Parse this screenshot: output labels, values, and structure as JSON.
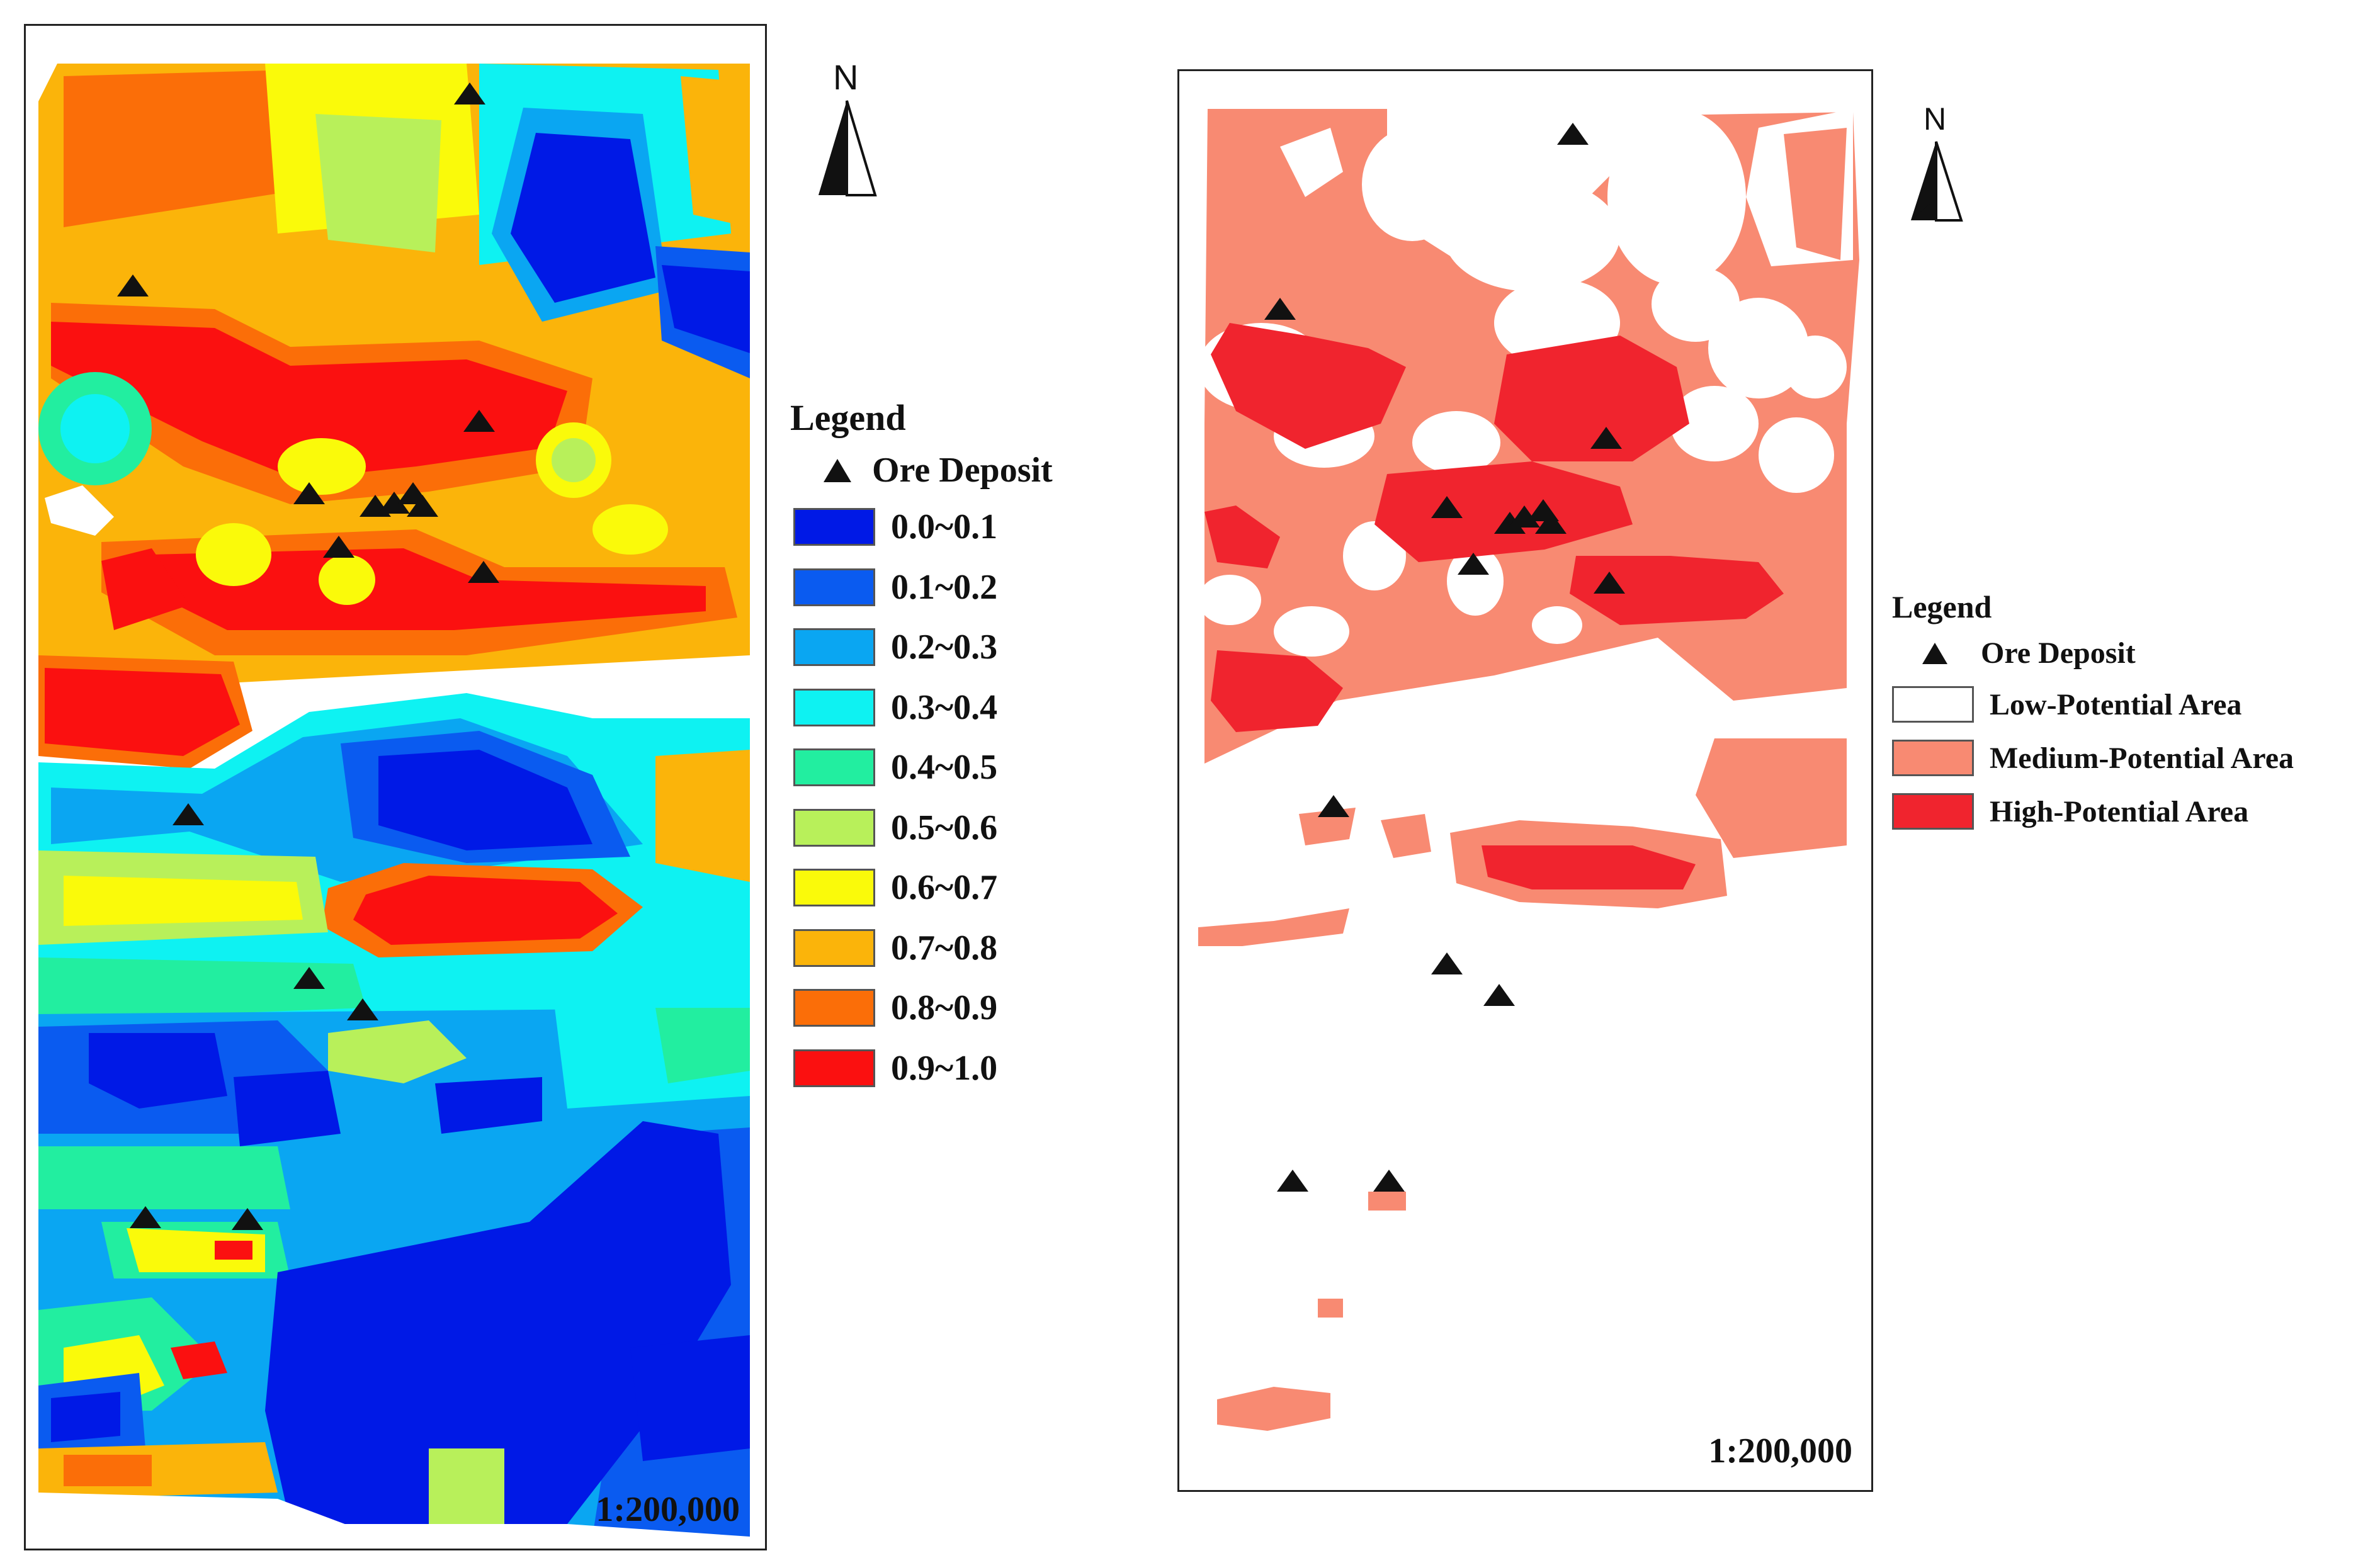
{
  "left_map": {
    "scale": "1:200,000",
    "north_label": "N",
    "legend": {
      "title": "Legend",
      "deposit_label": "Ore Deposit",
      "classes": [
        {
          "label": "0.0~0.1",
          "color": "#0019e6"
        },
        {
          "label": "0.1~0.2",
          "color": "#0a5bf0"
        },
        {
          "label": "0.2~0.3",
          "color": "#0aa6f2"
        },
        {
          "label": "0.3~0.4",
          "color": "#0ef2f2"
        },
        {
          "label": "0.4~0.5",
          "color": "#22eea0"
        },
        {
          "label": "0.5~0.6",
          "color": "#b8f05a"
        },
        {
          "label": "0.6~0.7",
          "color": "#fafa0a"
        },
        {
          "label": "0.7~0.8",
          "color": "#fbb40a"
        },
        {
          "label": "0.8~0.9",
          "color": "#fb6e08"
        },
        {
          "label": "0.9~1.0",
          "color": "#fb1010"
        }
      ]
    }
  },
  "right_map": {
    "scale": "1:200,000",
    "north_label": "N",
    "legend": {
      "title": "Legend",
      "deposit_label": "Ore Deposit",
      "classes": [
        {
          "label": "Low-Potential Area",
          "color": "#ffffff"
        },
        {
          "label": "Medium-Potential Area",
          "color": "#f88a72"
        },
        {
          "label": "High-Potential Area",
          "color": "#f0242e"
        }
      ]
    }
  },
  "colors": {
    "deposit_marker": "#111111",
    "frame": "#222222"
  }
}
